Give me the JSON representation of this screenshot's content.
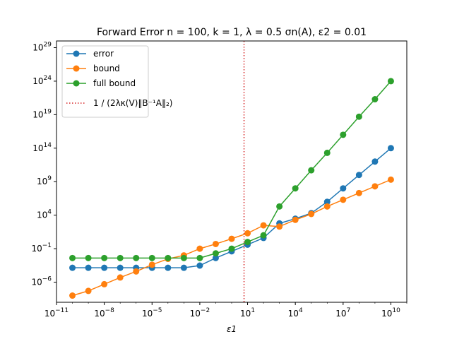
{
  "chart_data": {
    "type": "line",
    "title": "Forward Error n = 100, k = 1, λ = 0.5 σn(A), ε2 = 0.01",
    "xlabel": "ε1",
    "ylabel": "",
    "x_scale": "log",
    "y_scale": "log",
    "xlim": [
      1e-11,
      100000000000.0
    ],
    "ylim": [
      1e-09,
      1e+30
    ],
    "x_ticks": [
      {
        "value": 1e-11,
        "base": "10",
        "exp": "−11"
      },
      {
        "value": 1e-08,
        "base": "10",
        "exp": "−8"
      },
      {
        "value": 1e-05,
        "base": "10",
        "exp": "−5"
      },
      {
        "value": 0.01,
        "base": "10",
        "exp": "−2"
      },
      {
        "value": 10.0,
        "base": "10",
        "exp": "1"
      },
      {
        "value": 10000.0,
        "base": "10",
        "exp": "4"
      },
      {
        "value": 10000000.0,
        "base": "10",
        "exp": "7"
      },
      {
        "value": 10000000000.0,
        "base": "10",
        "exp": "10"
      }
    ],
    "y_ticks": [
      {
        "value": 1e-06,
        "base": "10",
        "exp": "−6"
      },
      {
        "value": 0.1,
        "base": "10",
        "exp": "−1"
      },
      {
        "value": 10000.0,
        "base": "10",
        "exp": "4"
      },
      {
        "value": 1000000000.0,
        "base": "10",
        "exp": "9"
      },
      {
        "value": 100000000000000.0,
        "base": "10",
        "exp": "14"
      },
      {
        "value": 1e+19,
        "base": "10",
        "exp": "19"
      },
      {
        "value": 1e+24,
        "base": "10",
        "exp": "24"
      },
      {
        "value": 1e+29,
        "base": "10",
        "exp": "29"
      }
    ],
    "x": [
      1e-10,
      1e-09,
      1e-08,
      1e-07,
      1e-06,
      1e-05,
      0.0001,
      0.001,
      0.01,
      0.1,
      1,
      10,
      100,
      1000.0,
      10000.0,
      100000.0,
      1000000.0,
      10000000.0,
      100000000.0,
      1000000000.0,
      10000000000.0
    ],
    "series": [
      {
        "name": "error",
        "color": "#1f77b4",
        "values": [
          0.00014,
          0.00014,
          0.00014,
          0.00014,
          0.00014,
          0.00014,
          0.00014,
          0.00014,
          0.0003,
          0.004,
          0.04,
          0.4,
          4,
          600,
          3000,
          20000.0,
          1000000.0,
          100000000.0,
          10000000000.0,
          1000000000000.0,
          100000000000000.0
        ]
      },
      {
        "name": "bound",
        "color": "#ff7f0e",
        "values": [
          1e-08,
          5e-08,
          5e-07,
          5e-06,
          4e-05,
          0.0004,
          0.003,
          0.01,
          0.1,
          0.5,
          3,
          20,
          300,
          200,
          2000,
          15000.0,
          200000.0,
          2000000.0,
          20000000.0,
          200000000.0,
          2000000000.0
        ]
      },
      {
        "name": "full bound",
        "color": "#2ca02c",
        "values": [
          0.004,
          0.004,
          0.004,
          0.004,
          0.004,
          0.004,
          0.004,
          0.004,
          0.004,
          0.02,
          0.1,
          1,
          10,
          200000.0,
          100000000.0,
          50000000000.0,
          20000000000000.0,
          1e+16,
          5e+18,
          2e+21,
          1e+24
        ]
      }
    ],
    "vline": {
      "x": 6,
      "color": "#d62728",
      "style": "dotted",
      "legend_label": "1 / (2λκ(V)‖B⁻¹A‖₂)"
    },
    "legend_position": "top-left",
    "grid": false
  }
}
